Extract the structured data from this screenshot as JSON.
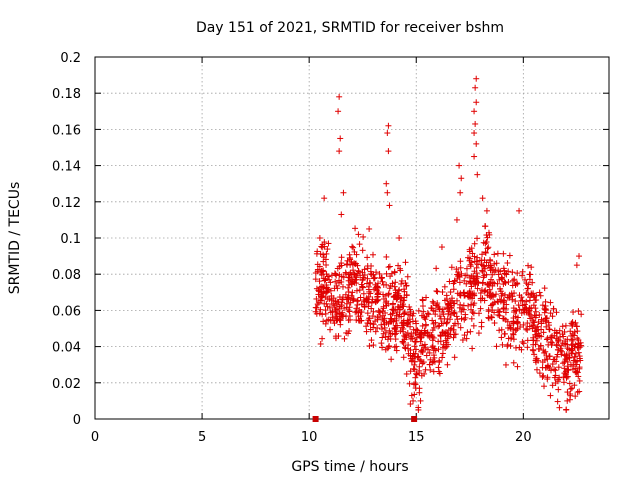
{
  "chart_data": {
    "type": "scatter",
    "title": "Day 151 of 2021, SRMTID for receiver bshm",
    "xlabel": "GPS time / hours",
    "ylabel": "SRMTID / TECUs",
    "xlim": [
      0,
      24
    ],
    "ylim": [
      0,
      0.2
    ],
    "x_ticks": [
      0,
      5,
      10,
      15,
      20
    ],
    "x_tick_labels": [
      "0",
      "5",
      "10",
      "15",
      "20"
    ],
    "y_ticks": [
      0,
      0.02,
      0.04,
      0.06,
      0.08,
      0.1,
      0.12,
      0.14,
      0.16,
      0.18,
      0.2
    ],
    "y_tick_labels": [
      "0",
      "0.02",
      "0.04",
      "0.06",
      "0.08",
      "0.1",
      "0.12",
      "0.14",
      "0.16",
      "0.18",
      "0.2"
    ],
    "grid": true,
    "marker": "+",
    "series_color": "#e00000",
    "marker_color": "#c80000",
    "x_axis_markers": [
      10.3,
      14.9
    ],
    "series": [
      {
        "name": "SRMTID",
        "profile": [
          {
            "x": 10.3,
            "y": 0.075
          },
          {
            "x": 10.5,
            "y": 0.072
          },
          {
            "x": 10.8,
            "y": 0.07
          },
          {
            "x": 11.0,
            "y": 0.068
          },
          {
            "x": 11.3,
            "y": 0.066
          },
          {
            "x": 11.5,
            "y": 0.064
          },
          {
            "x": 11.8,
            "y": 0.068
          },
          {
            "x": 12.0,
            "y": 0.075
          },
          {
            "x": 12.3,
            "y": 0.078
          },
          {
            "x": 12.5,
            "y": 0.072
          },
          {
            "x": 12.8,
            "y": 0.068
          },
          {
            "x": 13.0,
            "y": 0.065
          },
          {
            "x": 13.3,
            "y": 0.062
          },
          {
            "x": 13.6,
            "y": 0.06
          },
          {
            "x": 13.9,
            "y": 0.058
          },
          {
            "x": 14.2,
            "y": 0.062
          },
          {
            "x": 14.5,
            "y": 0.06
          },
          {
            "x": 14.8,
            "y": 0.04
          },
          {
            "x": 15.0,
            "y": 0.035
          },
          {
            "x": 15.3,
            "y": 0.045
          },
          {
            "x": 15.6,
            "y": 0.05
          },
          {
            "x": 15.9,
            "y": 0.048
          },
          {
            "x": 16.2,
            "y": 0.052
          },
          {
            "x": 16.5,
            "y": 0.055
          },
          {
            "x": 16.8,
            "y": 0.06
          },
          {
            "x": 17.0,
            "y": 0.068
          },
          {
            "x": 17.3,
            "y": 0.07
          },
          {
            "x": 17.6,
            "y": 0.072
          },
          {
            "x": 17.9,
            "y": 0.078
          },
          {
            "x": 18.2,
            "y": 0.08
          },
          {
            "x": 18.5,
            "y": 0.075
          },
          {
            "x": 18.8,
            "y": 0.07
          },
          {
            "x": 19.1,
            "y": 0.065
          },
          {
            "x": 19.4,
            "y": 0.06
          },
          {
            "x": 19.7,
            "y": 0.058
          },
          {
            "x": 20.0,
            "y": 0.065
          },
          {
            "x": 20.3,
            "y": 0.062
          },
          {
            "x": 20.6,
            "y": 0.05
          },
          {
            "x": 20.9,
            "y": 0.045
          },
          {
            "x": 21.2,
            "y": 0.042
          },
          {
            "x": 21.5,
            "y": 0.04
          },
          {
            "x": 21.8,
            "y": 0.035
          },
          {
            "x": 22.1,
            "y": 0.032
          },
          {
            "x": 22.4,
            "y": 0.035
          },
          {
            "x": 22.7,
            "y": 0.04
          }
        ],
        "spikes": [
          {
            "x": 11.4,
            "y": 0.178
          },
          {
            "x": 11.35,
            "y": 0.17
          },
          {
            "x": 11.45,
            "y": 0.155
          },
          {
            "x": 11.4,
            "y": 0.148
          },
          {
            "x": 11.6,
            "y": 0.125
          },
          {
            "x": 11.5,
            "y": 0.113
          },
          {
            "x": 13.7,
            "y": 0.162
          },
          {
            "x": 13.65,
            "y": 0.158
          },
          {
            "x": 13.7,
            "y": 0.148
          },
          {
            "x": 13.6,
            "y": 0.13
          },
          {
            "x": 13.65,
            "y": 0.125
          },
          {
            "x": 13.75,
            "y": 0.118
          },
          {
            "x": 17.0,
            "y": 0.14
          },
          {
            "x": 17.1,
            "y": 0.133
          },
          {
            "x": 17.05,
            "y": 0.125
          },
          {
            "x": 17.8,
            "y": 0.188
          },
          {
            "x": 17.75,
            "y": 0.183
          },
          {
            "x": 17.8,
            "y": 0.175
          },
          {
            "x": 17.7,
            "y": 0.17
          },
          {
            "x": 17.75,
            "y": 0.163
          },
          {
            "x": 17.7,
            "y": 0.158
          },
          {
            "x": 17.8,
            "y": 0.152
          },
          {
            "x": 17.7,
            "y": 0.145
          },
          {
            "x": 17.85,
            "y": 0.135
          },
          {
            "x": 18.1,
            "y": 0.122
          },
          {
            "x": 18.3,
            "y": 0.115
          },
          {
            "x": 19.8,
            "y": 0.115
          },
          {
            "x": 22.6,
            "y": 0.09
          },
          {
            "x": 22.5,
            "y": 0.085
          },
          {
            "x": 12.3,
            "y": 0.102
          },
          {
            "x": 12.8,
            "y": 0.105
          },
          {
            "x": 14.2,
            "y": 0.1
          },
          {
            "x": 16.2,
            "y": 0.095
          },
          {
            "x": 15.2,
            "y": 0.01
          },
          {
            "x": 15.1,
            "y": 0.005
          },
          {
            "x": 14.85,
            "y": 0.01
          },
          {
            "x": 22.0,
            "y": 0.005
          },
          {
            "x": 22.05,
            "y": 0.01
          },
          {
            "x": 10.7,
            "y": 0.122
          },
          {
            "x": 10.5,
            "y": 0.1
          },
          {
            "x": 16.9,
            "y": 0.11
          }
        ],
        "n_points": 1400,
        "spread": 0.013
      }
    ]
  }
}
